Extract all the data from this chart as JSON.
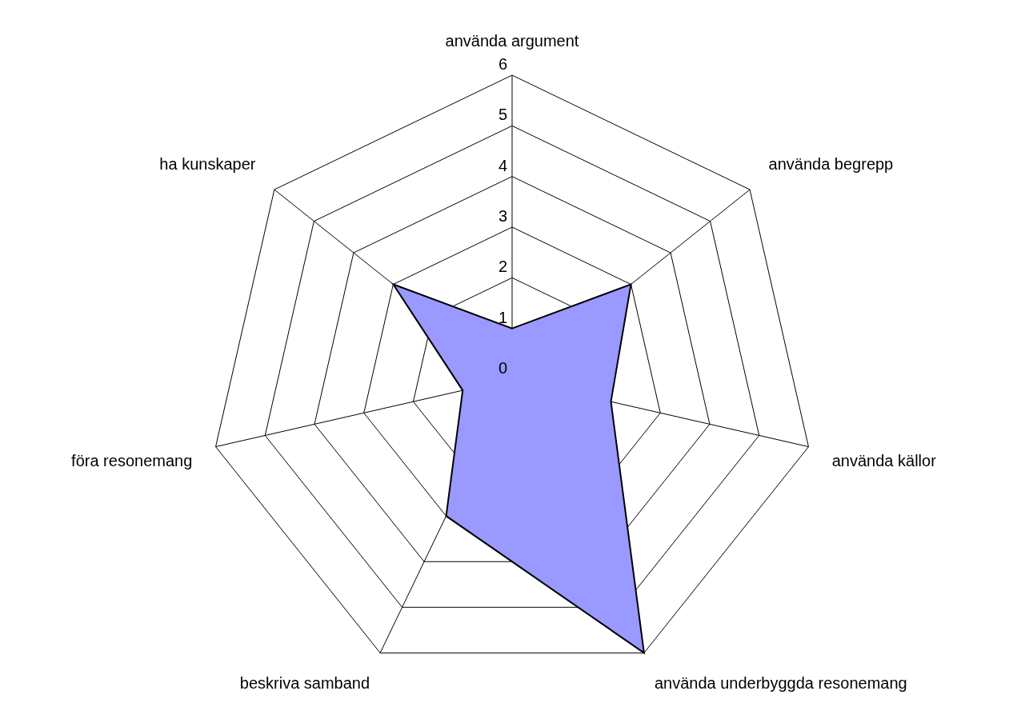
{
  "chart_data": {
    "type": "radar",
    "categories": [
      "använda argument",
      "använda begrepp",
      "använda källor",
      "använda underbyggda resonemang",
      "beskriva samband",
      "föra resonemang",
      "ha kunskaper"
    ],
    "series": [
      {
        "color": "#9999ff",
        "values": [
          1,
          3,
          2,
          6,
          3,
          1,
          3
        ]
      }
    ],
    "ylim": [
      0,
      6
    ],
    "yticks": [
      0,
      1,
      2,
      3,
      4,
      5,
      6
    ],
    "grid": true,
    "legend": false,
    "marker": "none"
  }
}
